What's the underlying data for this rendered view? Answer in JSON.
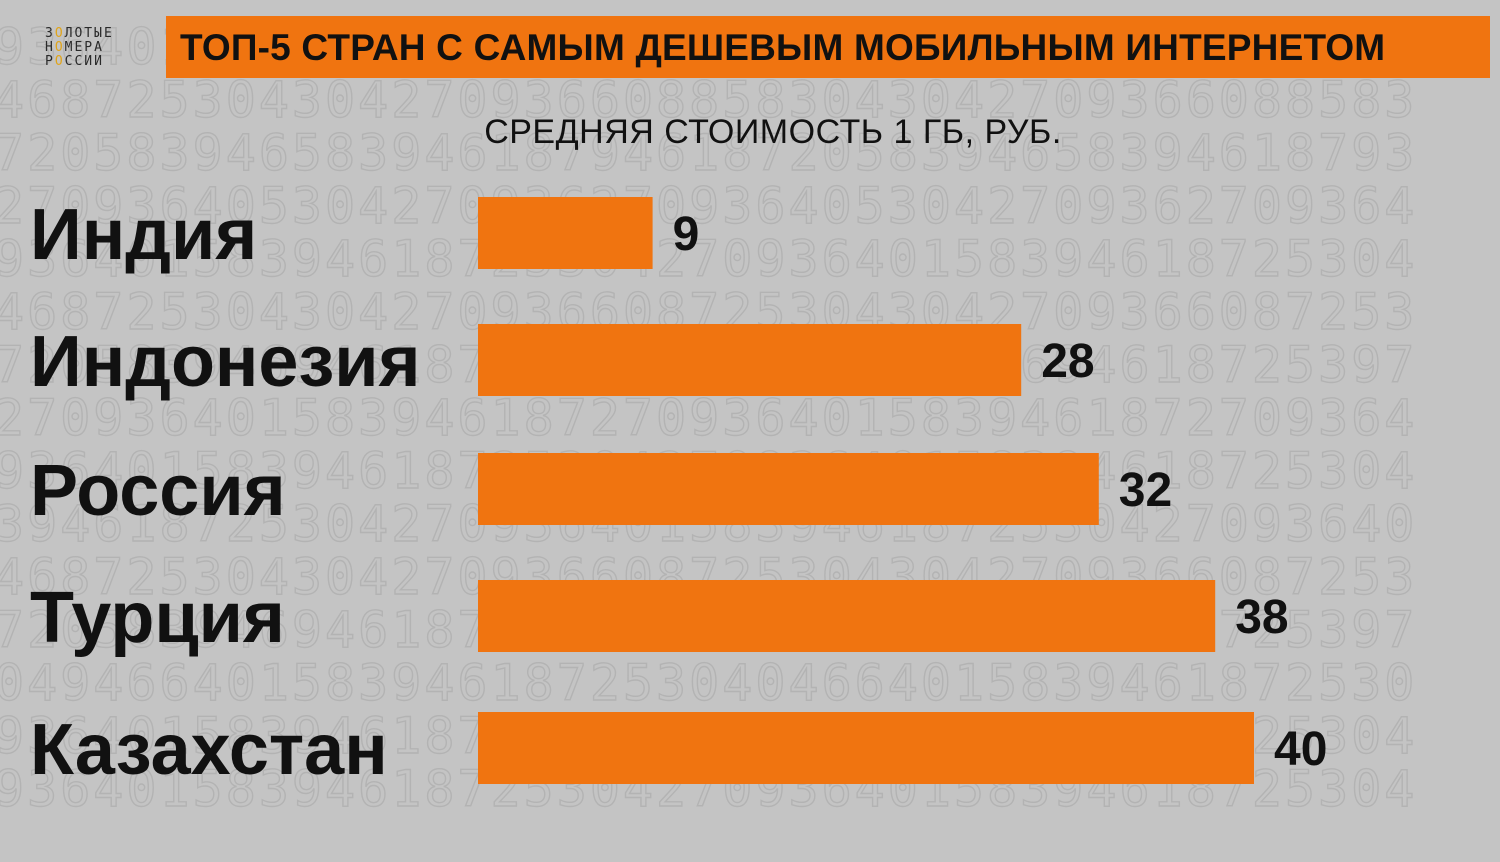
{
  "header": {
    "title": "ТОП-5 СТРАН С САМЫМ ДЕШЕВЫМ МОБИЛЬНЫМ ИНТЕРНЕТОМ",
    "logo": [
      "ЗОЛОТЫЕ",
      "НОМЕРА",
      "РОССИИ"
    ]
  },
  "colors": {
    "accent": "#f07410",
    "background": "#c4c4c4",
    "text": "#111111"
  },
  "background_digits": [
    "9364015839461872530427093640158394618725304",
    "4687253043042709366088583043042709366088583",
    "7205839465839461879461872058394658394618793",
    "2709364053042709362709364053042709362709364",
    "9364015839461872530427093640158394618725304",
    "4687253043042709366087253043042709366087253",
    "7205839469461872539461872058394694618725397",
    "2709364015839461872709364015839461872709364",
    "9364015839461872530427093640158394618725304",
    "3946187253042709364015839461872530427093640",
    "4687253043042709366087253043042709366087253",
    "7205839469461872539461872058394694618725397",
    "0494664015839461872530404664015839461872530",
    "9364015839461872530427093640158394618725304",
    "9364015839461872530427093640158394618725304"
  ],
  "chart_data": {
    "type": "bar",
    "orientation": "horizontal",
    "title": "ТОП-5 СТРАН С САМЫМ ДЕШЕВЫМ МОБИЛЬНЫМ ИНТЕРНЕТОМ",
    "subtitle": "СРЕДНЯЯ СТОИМОСТЬ 1 ГБ, РУБ.",
    "categories": [
      "Индия",
      "Индонезия",
      "Россия",
      "Турция",
      "Казахстан"
    ],
    "values": [
      9,
      28,
      32,
      38,
      40
    ],
    "value_labels": [
      "9",
      "28",
      "32",
      "38",
      "40"
    ],
    "xlim": [
      0,
      40
    ],
    "grid": false,
    "legend": "none"
  }
}
